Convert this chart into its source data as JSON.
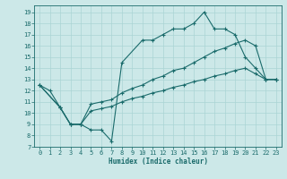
{
  "xlabel": "Humidex (Indice chaleur)",
  "bg_color": "#cce8e8",
  "line_color": "#1a6b6b",
  "grid_color": "#aad4d4",
  "xlim": [
    -0.5,
    23.5
  ],
  "ylim": [
    7,
    19.6
  ],
  "yticks": [
    7,
    8,
    9,
    10,
    11,
    12,
    13,
    14,
    15,
    16,
    17,
    18,
    19
  ],
  "xticks": [
    0,
    1,
    2,
    3,
    4,
    5,
    6,
    7,
    8,
    9,
    10,
    11,
    12,
    13,
    14,
    15,
    16,
    17,
    18,
    19,
    20,
    21,
    22,
    23
  ],
  "line1_x": [
    0,
    1,
    2,
    3,
    4,
    5,
    6,
    7,
    8,
    10,
    11,
    12,
    13,
    14,
    15,
    16,
    17,
    18,
    19,
    20,
    21,
    22,
    23
  ],
  "line1_y": [
    12.5,
    12.0,
    10.5,
    9.0,
    9.0,
    8.5,
    8.5,
    7.5,
    14.5,
    16.5,
    16.5,
    17.0,
    17.5,
    17.5,
    18.0,
    19.0,
    17.5,
    17.5,
    17.0,
    15.0,
    14.0,
    13.0,
    13.0
  ],
  "line2_x": [
    0,
    2,
    3,
    4,
    5,
    6,
    7,
    8,
    9,
    10,
    11,
    12,
    13,
    14,
    15,
    16,
    17,
    18,
    19,
    20,
    21,
    22,
    23
  ],
  "line2_y": [
    12.5,
    10.5,
    9.0,
    9.0,
    10.8,
    11.0,
    11.2,
    11.8,
    12.2,
    12.5,
    13.0,
    13.3,
    13.8,
    14.0,
    14.5,
    15.0,
    15.5,
    15.8,
    16.2,
    16.5,
    16.0,
    13.0,
    13.0
  ],
  "line3_x": [
    0,
    2,
    3,
    4,
    5,
    6,
    7,
    8,
    9,
    10,
    11,
    12,
    13,
    14,
    15,
    16,
    17,
    18,
    19,
    20,
    21,
    22,
    23
  ],
  "line3_y": [
    12.5,
    10.5,
    9.0,
    9.0,
    10.2,
    10.4,
    10.6,
    11.0,
    11.3,
    11.5,
    11.8,
    12.0,
    12.3,
    12.5,
    12.8,
    13.0,
    13.3,
    13.5,
    13.8,
    14.0,
    13.5,
    13.0,
    13.0
  ]
}
